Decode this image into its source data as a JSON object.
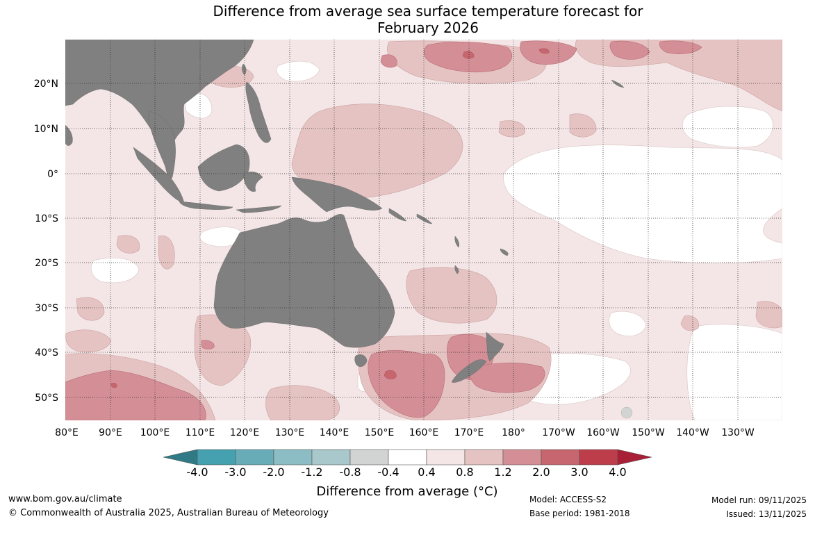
{
  "title_line1": "Difference from average sea surface temperature forecast for",
  "title_line2": "February 2026",
  "map": {
    "lon_labels": [
      "80°E",
      "90°E",
      "100°E",
      "110°E",
      "120°E",
      "130°E",
      "140°E",
      "150°E",
      "160°E",
      "170°E",
      "180°",
      "170°W",
      "160°W",
      "150°W",
      "140°W",
      "130°W"
    ],
    "lat_labels": [
      "20°N",
      "10°N",
      "0°",
      "10°S",
      "20°S",
      "30°S",
      "40°S",
      "50°S"
    ],
    "land_color": "#808080",
    "level_colors": {
      "lt_-4.0": "#2f7a86",
      "-4.0_-3.0": "#45a1b0",
      "-3.0_-2.0": "#68acb8",
      "-2.0_-1.2": "#8cbdc4",
      "-1.2_-0.8": "#a9c8cc",
      "-0.8_-0.4": "#d2d4d3",
      "-0.4_0.4": "#ffffff",
      "0.4_0.8": "#f4e6e6",
      "0.8_1.2": "#e6c3c3",
      "1.2_2.0": "#d48f96",
      "2.0_3.0": "#c8666f",
      "3.0_4.0": "#bd3d4b",
      "gt_4.0": "#a81f36"
    }
  },
  "colorbar": {
    "ticks": [
      "-4.0",
      "-3.0",
      "-2.0",
      "-1.2",
      "-0.8",
      "-0.4",
      "0.4",
      "0.8",
      "1.2",
      "2.0",
      "3.0",
      "4.0"
    ],
    "title": "Difference from average (°C)"
  },
  "footer": {
    "website": "www.bom.gov.au/climate",
    "copyright": "© Commonwealth of Australia 2025, Australian Bureau of Meteorology",
    "model": "Model: ACCESS-S2",
    "base_period": "Base period: 1981-2018",
    "model_run": "Model run: 09/11/2025",
    "issued": "Issued: 13/11/2025"
  }
}
